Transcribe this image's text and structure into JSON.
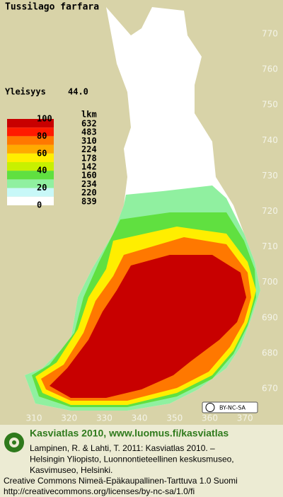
{
  "header": {
    "title": "Tussilago farfara",
    "frequency_label": "Yleisyys",
    "frequency_value": "44.0"
  },
  "legend": {
    "count_header": "lkm",
    "scale_labels": [
      100,
      80,
      60,
      40,
      20,
      0
    ],
    "counts": [
      632,
      483,
      310,
      224,
      178,
      142,
      160,
      234,
      220,
      839
    ],
    "colors": [
      "#c80000",
      "#ff1a00",
      "#ff7800",
      "#ffaa00",
      "#ffee00",
      "#c8f000",
      "#60e040",
      "#90f0a0",
      "#c8f8f8",
      "#ffffff"
    ]
  },
  "grid": {
    "northing": [
      770,
      760,
      750,
      740,
      730,
      720,
      710,
      700,
      690,
      680,
      670
    ],
    "easting": [
      310,
      320,
      330,
      340,
      350,
      360,
      370
    ]
  },
  "badge": "BY-NC-SA",
  "footer": {
    "heading": "Kasviatlas 2010, www.luomus.fi/kasviatlas",
    "citation": [
      "Lampinen, R. & Lahti, T. 2011: Kasviatlas 2010. –",
      "Helsingin Yliopisto, Luonnontieteellinen keskusmuseo,",
      "Kasvimuseo, Helsinki."
    ],
    "license": [
      "Creative Commons Nimeä-Epäkaupallinen-Tarttuva 1.0 Suomi",
      "http://creativecommons.org/licenses/by-nc-sa/1.0/fi"
    ]
  }
}
